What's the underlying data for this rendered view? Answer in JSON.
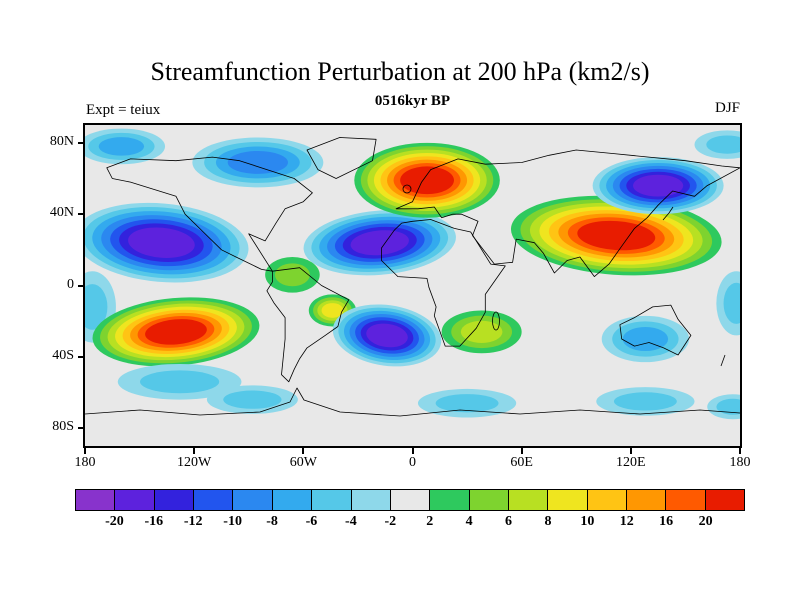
{
  "chart_data": {
    "type": "filled-contour-map",
    "title": "Streamfunction Perturbation at 200 hPa (km2/s)",
    "subtitle": "0516kyr BP",
    "experiment": "Expt = teiux",
    "season": "DJF",
    "variable": "Streamfunction Perturbation",
    "level": "200 hPa",
    "units": "km2/s",
    "projection": "cylindrical-equidistant",
    "lon_range": [
      -180,
      180
    ],
    "lat_range": [
      -90,
      90
    ],
    "grid": false,
    "legend_position": "bottom-colorbar",
    "contour_levels": [
      -20,
      -16,
      -12,
      -10,
      -8,
      -6,
      -4,
      -2,
      2,
      4,
      6,
      8,
      10,
      12,
      16,
      20
    ],
    "palette": [
      "#8833cc",
      "#5d22dd",
      "#3322dd",
      "#2255ee",
      "#2b88f0",
      "#33aaee",
      "#55c8e8",
      "#8ed8ea",
      "#e8e8e8",
      "#2ec95e",
      "#7ed32f",
      "#b8e022",
      "#efe51f",
      "#ffc414",
      "#ff9702",
      "#ff5a00",
      "#e81c00"
    ],
    "background_fill": "#e8e8e8",
    "lat_ticks": [
      {
        "deg": 80,
        "label": "80N"
      },
      {
        "deg": 40,
        "label": "40N"
      },
      {
        "deg": 0,
        "label": "0"
      },
      {
        "deg": -40,
        "label": "40S"
      },
      {
        "deg": -80,
        "label": "80S"
      }
    ],
    "lon_ticks": [
      {
        "deg": -180,
        "label": "180"
      },
      {
        "deg": -120,
        "label": "120W"
      },
      {
        "deg": -60,
        "label": "60W"
      },
      {
        "deg": 0,
        "label": "0"
      },
      {
        "deg": 60,
        "label": "60E"
      },
      {
        "deg": 120,
        "label": "120E"
      },
      {
        "deg": 180,
        "label": "180"
      }
    ],
    "anomalies": [
      {
        "name": "northeast-pacific-low",
        "lon": -138,
        "lat": 24,
        "peak": -17,
        "rx": 48,
        "ry": 22,
        "rot": 5
      },
      {
        "name": "north-atlantic-africa-low",
        "lon": -18,
        "lat": 24,
        "peak": -17,
        "rx": 42,
        "ry": 18,
        "rot": -5
      },
      {
        "name": "arctic-canada-low",
        "lon": -85,
        "lat": 69,
        "peak": -9,
        "rx": 36,
        "ry": 14,
        "rot": 0
      },
      {
        "name": "arctic-alaska-low",
        "lon": -160,
        "lat": 78,
        "peak": -7,
        "rx": 24,
        "ry": 10,
        "rot": 0
      },
      {
        "name": "arctic-east-low",
        "lon": 173,
        "lat": 79,
        "peak": -5,
        "rx": 18,
        "ry": 8,
        "rot": 0
      },
      {
        "name": "asia-high",
        "lon": 112,
        "lat": 28,
        "peak": 23,
        "rx": 58,
        "ry": 22,
        "rot": 4
      },
      {
        "name": "northeast-asia-low",
        "lon": 135,
        "lat": 56,
        "peak": -17,
        "rx": 36,
        "ry": 16,
        "rot": 0
      },
      {
        "name": "europe-high",
        "lon": 8,
        "lat": 59,
        "peak": 21,
        "rx": 40,
        "ry": 21,
        "rot": 0
      },
      {
        "name": "caribbean-high",
        "lon": -66,
        "lat": 6,
        "peak": 5,
        "rx": 15,
        "ry": 10,
        "rot": 0
      },
      {
        "name": "dateline-west-low",
        "lon": -176,
        "lat": -12,
        "peak": -5,
        "rx": 13,
        "ry": 20,
        "rot": 0
      },
      {
        "name": "dateline-east-low",
        "lon": 178,
        "lat": -10,
        "peak": -5,
        "rx": 11,
        "ry": 18,
        "rot": 0
      },
      {
        "name": "south-pacific-high",
        "lon": -130,
        "lat": -26,
        "peak": 21,
        "rx": 46,
        "ry": 19,
        "rot": -5
      },
      {
        "name": "south-pacific-south-low",
        "lon": -128,
        "lat": -54,
        "peak": -5,
        "rx": 34,
        "ry": 10,
        "rot": 0
      },
      {
        "name": "south-america-high",
        "lon": -44,
        "lat": -14,
        "peak": 9,
        "rx": 13,
        "ry": 9,
        "rot": 0
      },
      {
        "name": "south-atlantic-low",
        "lon": -14,
        "lat": -28,
        "peak": -17,
        "rx": 30,
        "ry": 17,
        "rot": 8
      },
      {
        "name": "south-africa-high",
        "lon": 38,
        "lat": -26,
        "peak": 7,
        "rx": 22,
        "ry": 12,
        "rot": 0
      },
      {
        "name": "australia-low",
        "lon": 128,
        "lat": -30,
        "peak": -7,
        "rx": 24,
        "ry": 13,
        "rot": 0
      },
      {
        "name": "southern-ocean-low-1",
        "lon": -88,
        "lat": -64,
        "peak": -5,
        "rx": 25,
        "ry": 8,
        "rot": 0
      },
      {
        "name": "southern-ocean-low-2",
        "lon": 30,
        "lat": -66,
        "peak": -5,
        "rx": 27,
        "ry": 8,
        "rot": 0
      },
      {
        "name": "southern-ocean-low-3",
        "lon": 128,
        "lat": -65,
        "peak": -5,
        "rx": 27,
        "ry": 8,
        "rot": 0
      },
      {
        "name": "southeast-corner-low",
        "lon": 176,
        "lat": -68,
        "peak": -5,
        "rx": 14,
        "ry": 7,
        "rot": 0
      }
    ]
  }
}
